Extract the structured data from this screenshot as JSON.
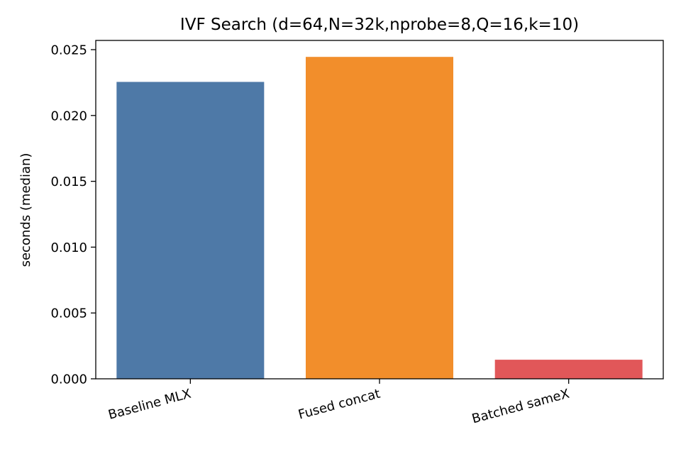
{
  "chart_data": {
    "type": "bar",
    "title": "IVF Search (d=64,N=32k,nprobe=8,Q=16,k=10)",
    "xlabel": "",
    "ylabel": "seconds (median)",
    "categories": [
      "Baseline MLX",
      "Fused concat",
      "Batched sameX"
    ],
    "values": [
      0.02255,
      0.02445,
      0.00145
    ],
    "colors": [
      "#4e79a7",
      "#f28e2b",
      "#e15759"
    ],
    "ylim": [
      0,
      0.0257
    ],
    "yticks": [
      0.0,
      0.005,
      0.01,
      0.015,
      0.02,
      0.025
    ],
    "ytick_labels": [
      "0.000",
      "0.005",
      "0.010",
      "0.015",
      "0.020",
      "0.025"
    ],
    "grid": false,
    "legend": "none"
  }
}
